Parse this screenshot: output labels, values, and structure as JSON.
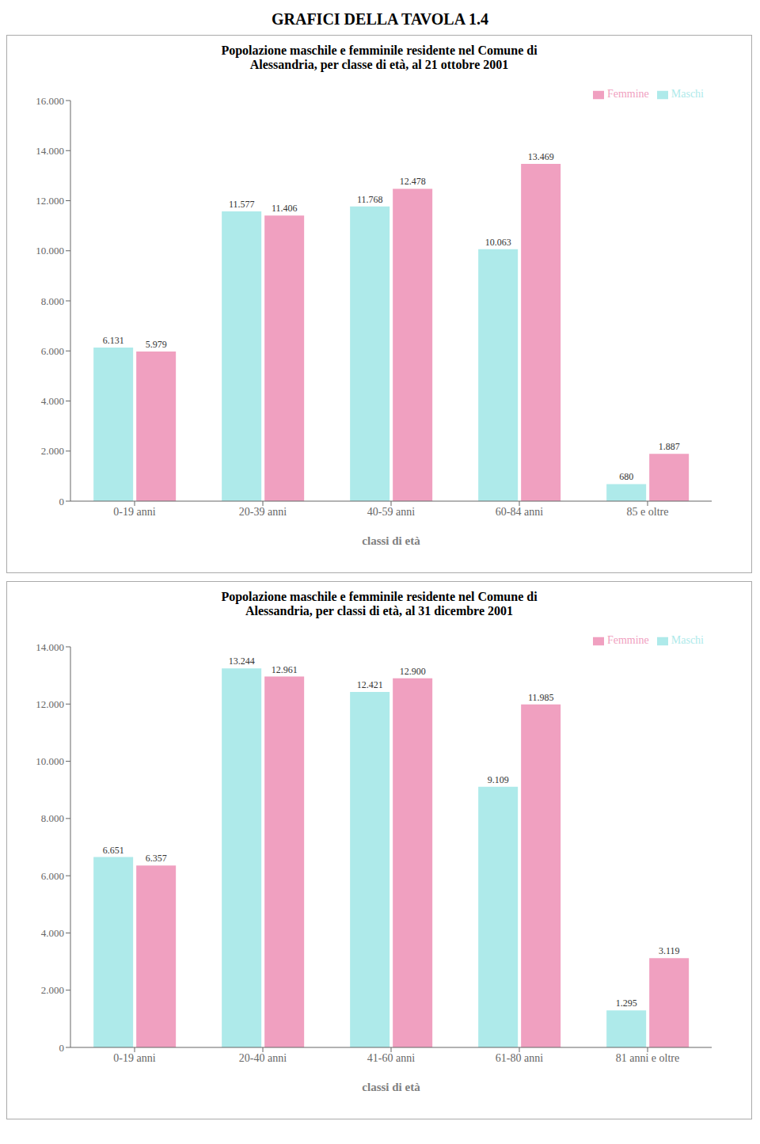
{
  "title": "GRAFICI DELLA TAVOLA 1.4",
  "chart_data": [
    {
      "type": "bar",
      "title": "Popolazione maschile e femminile residente nel Comune di",
      "subtitle": "Alessandria, per classe di età, al 21 ottobre 2001",
      "categories": [
        "0-19 anni",
        "20-39 anni",
        "40-59 anni",
        "60-84 anni",
        "85 e oltre"
      ],
      "series": [
        {
          "name": "Maschi",
          "color": "#aeeaea",
          "values": [
            6131,
            11577,
            11768,
            10063,
            680
          ],
          "value_labels": [
            "6.131",
            "11.577",
            "11.768",
            "10.063",
            "680"
          ]
        },
        {
          "name": "Femmine",
          "color": "#f0a0c0",
          "values": [
            5979,
            11406,
            12478,
            13469,
            1887
          ],
          "value_labels": [
            "5.979",
            "11.406",
            "12.478",
            "13.469",
            "1.887"
          ]
        }
      ],
      "xlabel": "classi di età",
      "ylim": [
        0,
        16000
      ],
      "yticks": [
        0,
        {
          "value": 2000,
          "label": "2.000"
        },
        {
          "value": 4000,
          "label": "4.000"
        },
        {
          "value": 6000,
          "label": "6.000"
        },
        {
          "value": 8000,
          "label": "8.000"
        },
        {
          "value": 10000,
          "label": "10.000"
        },
        {
          "value": 12000,
          "label": "12.000"
        },
        {
          "value": 14000,
          "label": "14.000"
        },
        {
          "value": 16000,
          "label": "16.000"
        }
      ],
      "grid": false,
      "legend": "upper right",
      "data_labels": true
    },
    {
      "type": "bar",
      "title": "Popolazione maschile e femminile residente nel Comune di",
      "subtitle": "Alessandria, per classi di età, al 31 dicembre 2001",
      "categories": [
        "0-19 anni",
        "20-40 anni",
        "41-60 anni",
        "61-80 anni",
        "81 anni e oltre"
      ],
      "series": [
        {
          "name": "Maschi",
          "color": "#aeeaea",
          "values": [
            6651,
            13244,
            12421,
            9109,
            1295
          ],
          "value_labels": [
            "6.651",
            "13.244",
            "12.421",
            "9.109",
            "1.295"
          ]
        },
        {
          "name": "Femmine",
          "color": "#f0a0c0",
          "values": [
            6357,
            12961,
            12900,
            11985,
            3119
          ],
          "value_labels": [
            "6.357",
            "12.961",
            "12.900",
            "11.985",
            "3.119"
          ]
        }
      ],
      "xlabel": "classi di età",
      "ylim": [
        0,
        14000
      ],
      "yticks": [
        0,
        {
          "value": 2000,
          "label": "2.000"
        },
        {
          "value": 4000,
          "label": "4.000"
        },
        {
          "value": 6000,
          "label": "6.000"
        },
        {
          "value": 8000,
          "label": "8.000"
        },
        {
          "value": 10000,
          "label": "10.000"
        },
        {
          "value": 12000,
          "label": "12.000"
        },
        {
          "value": 14000,
          "label": "14.000"
        }
      ],
      "grid": false,
      "legend": "upper right",
      "data_labels": true
    }
  ]
}
